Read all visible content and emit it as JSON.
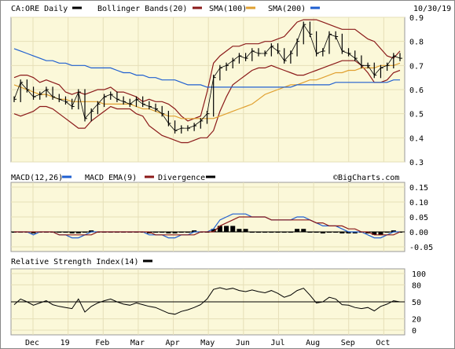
{
  "chart_data": [
    {
      "type": "line",
      "panel": "price",
      "title": "CA:ORE Daily",
      "as_of_date": "10/30/19",
      "legend": [
        {
          "name": "CA:ORE Daily",
          "color": "#000000"
        },
        {
          "name": "Bollinger Bands(20)",
          "color": "#8b1a1a"
        },
        {
          "name": "SMA(100)",
          "color": "#e0a030"
        },
        {
          "name": "SMA(200)",
          "color": "#1f5fd0"
        }
      ],
      "ylim": [
        0.3,
        0.9
      ],
      "y_ticks": [
        "0.9",
        "0.8",
        "0.7",
        "0.6",
        "0.5",
        "0.4",
        "0.3"
      ],
      "x_labels": [
        "Dec",
        "19",
        "Feb",
        "Mar",
        "Apr",
        "May",
        "Jun",
        "Jul",
        "Aug",
        "Sep",
        "Oct"
      ],
      "x_index": [
        0,
        4,
        8,
        12,
        16,
        20,
        24,
        28,
        32,
        36,
        40,
        44,
        48,
        52,
        56,
        60,
        64,
        68,
        72,
        76,
        80,
        84,
        88,
        92,
        96,
        100,
        104,
        108,
        112,
        116,
        120,
        124,
        128,
        132,
        136,
        140,
        144,
        148,
        152,
        156,
        160,
        164,
        168,
        172,
        176,
        180,
        184,
        188,
        192,
        196,
        200,
        204,
        208,
        212,
        216,
        220,
        224,
        228,
        232,
        236,
        240
      ],
      "series": [
        {
          "name": "CA:ORE Daily",
          "color": "#000000",
          "values": [
            0.56,
            0.63,
            0.6,
            0.57,
            0.58,
            0.6,
            0.57,
            0.56,
            0.55,
            0.53,
            0.59,
            0.48,
            0.51,
            0.54,
            0.57,
            0.58,
            0.56,
            0.55,
            0.54,
            0.56,
            0.54,
            0.53,
            0.52,
            0.5,
            0.46,
            0.43,
            0.44,
            0.44,
            0.45,
            0.47,
            0.5,
            0.65,
            0.69,
            0.7,
            0.72,
            0.74,
            0.73,
            0.76,
            0.75,
            0.75,
            0.78,
            0.76,
            0.72,
            0.75,
            0.8,
            0.87,
            0.83,
            0.75,
            0.76,
            0.83,
            0.82,
            0.76,
            0.75,
            0.73,
            0.7,
            0.7,
            0.66,
            0.69,
            0.7,
            0.74,
            0.73
          ]
        },
        {
          "name": "Bollinger Upper",
          "color": "#8b1a1a",
          "values": [
            0.65,
            0.66,
            0.66,
            0.65,
            0.63,
            0.64,
            0.63,
            0.62,
            0.59,
            0.58,
            0.59,
            0.58,
            0.59,
            0.6,
            0.6,
            0.61,
            0.59,
            0.59,
            0.58,
            0.57,
            0.55,
            0.56,
            0.55,
            0.55,
            0.54,
            0.52,
            0.49,
            0.47,
            0.48,
            0.49,
            0.59,
            0.71,
            0.74,
            0.76,
            0.78,
            0.78,
            0.79,
            0.79,
            0.79,
            0.8,
            0.8,
            0.81,
            0.82,
            0.85,
            0.88,
            0.89,
            0.89,
            0.89,
            0.88,
            0.87,
            0.86,
            0.85,
            0.85,
            0.85,
            0.83,
            0.81,
            0.8,
            0.77,
            0.74,
            0.73,
            0.76
          ]
        },
        {
          "name": "Bollinger Lower",
          "color": "#8b1a1a",
          "values": [
            0.5,
            0.49,
            0.5,
            0.51,
            0.53,
            0.53,
            0.52,
            0.5,
            0.48,
            0.46,
            0.44,
            0.44,
            0.47,
            0.49,
            0.51,
            0.53,
            0.52,
            0.52,
            0.52,
            0.5,
            0.49,
            0.45,
            0.43,
            0.41,
            0.4,
            0.39,
            0.38,
            0.38,
            0.39,
            0.4,
            0.4,
            0.43,
            0.51,
            0.57,
            0.62,
            0.64,
            0.66,
            0.68,
            0.69,
            0.69,
            0.7,
            0.69,
            0.68,
            0.67,
            0.66,
            0.66,
            0.67,
            0.68,
            0.69,
            0.7,
            0.71,
            0.72,
            0.72,
            0.72,
            0.7,
            0.67,
            0.63,
            0.63,
            0.64,
            0.67,
            0.68
          ]
        },
        {
          "name": "SMA(100)",
          "color": "#e0a030",
          "values": [
            0.62,
            0.61,
            0.6,
            0.59,
            0.58,
            0.58,
            0.57,
            0.56,
            0.56,
            0.55,
            0.55,
            0.55,
            0.55,
            0.55,
            0.54,
            0.54,
            0.54,
            0.54,
            0.54,
            0.53,
            0.52,
            0.52,
            0.51,
            0.5,
            0.49,
            0.49,
            0.48,
            0.48,
            0.48,
            0.48,
            0.48,
            0.48,
            0.49,
            0.5,
            0.51,
            0.52,
            0.53,
            0.54,
            0.56,
            0.58,
            0.59,
            0.6,
            0.61,
            0.62,
            0.62,
            0.63,
            0.64,
            0.64,
            0.65,
            0.66,
            0.67,
            0.67,
            0.68,
            0.68,
            0.69,
            0.69,
            0.69,
            0.7,
            0.7,
            0.7,
            0.71
          ]
        },
        {
          "name": "SMA(200)",
          "color": "#1f5fd0",
          "values": [
            0.77,
            0.76,
            0.75,
            0.74,
            0.73,
            0.72,
            0.72,
            0.71,
            0.71,
            0.7,
            0.7,
            0.7,
            0.69,
            0.69,
            0.69,
            0.69,
            0.68,
            0.67,
            0.67,
            0.66,
            0.66,
            0.65,
            0.65,
            0.64,
            0.64,
            0.64,
            0.63,
            0.62,
            0.62,
            0.62,
            0.61,
            0.61,
            0.61,
            0.61,
            0.61,
            0.61,
            0.61,
            0.61,
            0.61,
            0.61,
            0.61,
            0.61,
            0.61,
            0.61,
            0.62,
            0.62,
            0.62,
            0.62,
            0.62,
            0.62,
            0.63,
            0.63,
            0.63,
            0.63,
            0.63,
            0.63,
            0.63,
            0.63,
            0.63,
            0.64,
            0.64
          ]
        }
      ]
    },
    {
      "type": "line",
      "panel": "macd",
      "legend": [
        {
          "name": "MACD(12,26)",
          "color": "#000000"
        },
        {
          "name": "MACD EMA(9)",
          "color": "#1f5fd0"
        },
        {
          "name": "Divergence",
          "color": "#000000"
        }
      ],
      "watermark": "©BigCharts.com",
      "ylim": [
        -0.05,
        0.15
      ],
      "y_ticks": [
        "0.15",
        "0.10",
        "0.05",
        "0.00",
        "-0.05"
      ],
      "series": [
        {
          "name": "MACD(12,26)",
          "color": "#1f5fd0",
          "values": [
            0.0,
            0.0,
            0.0,
            -0.01,
            0.0,
            0.0,
            0.0,
            -0.01,
            -0.01,
            -0.02,
            -0.02,
            -0.01,
            0.0,
            0.0,
            0.0,
            0.0,
            0.0,
            0.0,
            0.0,
            0.0,
            0.0,
            -0.01,
            -0.01,
            -0.01,
            -0.02,
            -0.02,
            -0.01,
            -0.01,
            0.0,
            0.0,
            0.0,
            0.01,
            0.04,
            0.05,
            0.06,
            0.06,
            0.06,
            0.05,
            0.05,
            0.05,
            0.04,
            0.04,
            0.04,
            0.04,
            0.05,
            0.05,
            0.04,
            0.03,
            0.02,
            0.02,
            0.02,
            0.01,
            0.0,
            0.0,
            0.0,
            -0.01,
            -0.02,
            -0.02,
            -0.01,
            0.0,
            0.0
          ]
        },
        {
          "name": "MACD EMA(9)",
          "color": "#8b1a1a",
          "values": [
            0.0,
            0.0,
            0.0,
            0.0,
            0.0,
            0.0,
            0.0,
            -0.01,
            -0.01,
            -0.01,
            -0.01,
            -0.01,
            -0.01,
            0.0,
            0.0,
            0.0,
            0.0,
            0.0,
            0.0,
            0.0,
            0.0,
            0.0,
            -0.01,
            -0.01,
            -0.01,
            -0.01,
            -0.01,
            -0.01,
            -0.01,
            0.0,
            0.0,
            0.0,
            0.02,
            0.03,
            0.04,
            0.05,
            0.05,
            0.05,
            0.05,
            0.05,
            0.04,
            0.04,
            0.04,
            0.04,
            0.04,
            0.04,
            0.04,
            0.03,
            0.03,
            0.02,
            0.02,
            0.02,
            0.01,
            0.01,
            0.0,
            0.0,
            -0.01,
            -0.01,
            -0.01,
            -0.01,
            0.0
          ]
        },
        {
          "name": "Divergence",
          "color": "#000000",
          "values": [
            0.0,
            0.0,
            0.0,
            -0.005,
            0.0,
            0.0,
            0.0,
            0.0,
            0.0,
            -0.005,
            -0.005,
            0.0,
            0.005,
            0.0,
            0.0,
            0.0,
            0.0,
            0.0,
            0.0,
            0.0,
            0.0,
            -0.005,
            0.0,
            0.0,
            -0.005,
            -0.005,
            0.0,
            0.0,
            0.005,
            0.0,
            0.0,
            0.01,
            0.02,
            0.02,
            0.02,
            0.01,
            0.01,
            0.0,
            0.0,
            0.0,
            0.0,
            0.0,
            0.0,
            0.0,
            0.01,
            0.01,
            0.0,
            0.0,
            -0.005,
            0.0,
            0.0,
            -0.005,
            -0.005,
            -0.005,
            0.0,
            -0.005,
            -0.01,
            -0.01,
            0.0,
            0.005,
            0.0
          ]
        }
      ]
    },
    {
      "type": "line",
      "panel": "rsi",
      "legend": [
        {
          "name": "Relative Strength Index(14)",
          "color": "#000000"
        }
      ],
      "ylim": [
        0,
        100
      ],
      "y_ticks": [
        "100",
        "80",
        "50",
        "20",
        "0"
      ],
      "reference_line": 50,
      "series": [
        {
          "name": "Relative Strength Index(14)",
          "color": "#000000",
          "values": [
            45,
            55,
            50,
            44,
            48,
            52,
            45,
            42,
            40,
            38,
            55,
            32,
            42,
            48,
            52,
            55,
            50,
            46,
            44,
            48,
            45,
            42,
            40,
            35,
            30,
            28,
            33,
            36,
            40,
            45,
            55,
            72,
            75,
            72,
            74,
            70,
            68,
            71,
            68,
            66,
            70,
            65,
            58,
            62,
            70,
            74,
            62,
            48,
            50,
            58,
            55,
            45,
            44,
            40,
            38,
            40,
            34,
            42,
            46,
            52,
            50
          ]
        }
      ]
    }
  ]
}
